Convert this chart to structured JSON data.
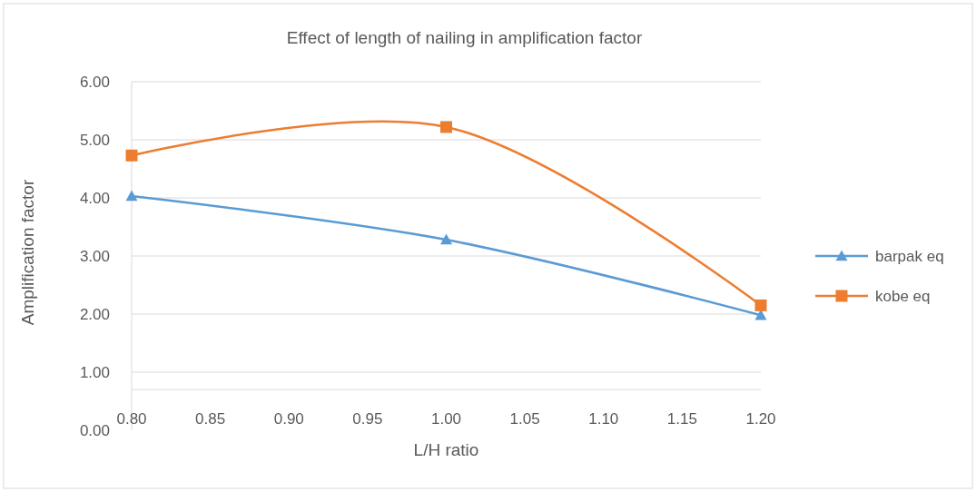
{
  "chart_data": {
    "type": "line",
    "title": "Effect of length of nailing in amplification factor",
    "xlabel": "L/H ratio",
    "ylabel": "Amplification factor",
    "x": [
      0.8,
      1.0,
      1.2
    ],
    "series": [
      {
        "name": "barpak eq",
        "color": "#5b9bd5",
        "values": [
          4.03,
          3.28,
          1.98
        ],
        "marker": "triangle"
      },
      {
        "name": "kobe eq",
        "color": "#ed7d31",
        "values": [
          4.73,
          5.22,
          2.15
        ],
        "marker": "square"
      }
    ],
    "xlim": [
      0.8,
      1.2
    ],
    "xticks": [
      {
        "value": 0.8,
        "label": "0.80"
      },
      {
        "value": 0.85,
        "label": "0.85"
      },
      {
        "value": 0.9,
        "label": "0.90"
      },
      {
        "value": 0.95,
        "label": "0.95"
      },
      {
        "value": 1.0,
        "label": "1.00"
      },
      {
        "value": 1.05,
        "label": "1.05"
      },
      {
        "value": 1.1,
        "label": "1.10"
      },
      {
        "value": 1.15,
        "label": "1.15"
      },
      {
        "value": 1.2,
        "label": "1.20"
      }
    ],
    "ylim": [
      0,
      6
    ],
    "yticks": [
      {
        "value": 0,
        "label": "0.00"
      },
      {
        "value": 1,
        "label": "1.00"
      },
      {
        "value": 2,
        "label": "2.00"
      },
      {
        "value": 3,
        "label": "3.00"
      },
      {
        "value": 4,
        "label": "4.00"
      },
      {
        "value": 5,
        "label": "5.00"
      },
      {
        "value": 6,
        "label": "6.00"
      }
    ],
    "ref_lines": [
      {
        "axis": "y",
        "value": 0.7,
        "color": "#d9d9d9"
      }
    ],
    "grid": "y",
    "legend": "right"
  }
}
